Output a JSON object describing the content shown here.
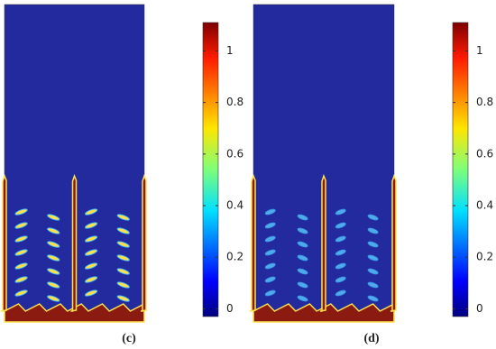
{
  "chart_data": [
    {
      "type": "heatmap",
      "label": "(c)",
      "colorbar": {
        "lim": [
          -0.03,
          1.11
        ],
        "ticks": [
          0,
          0.2,
          0.4,
          0.6,
          0.8,
          1
        ]
      }
    },
    {
      "type": "heatmap",
      "label": "(d)",
      "colorbar": {
        "lim": [
          -0.03,
          1.11
        ],
        "ticks": [
          0,
          0.2,
          0.4,
          0.6,
          0.8,
          1
        ]
      }
    }
  ]
}
